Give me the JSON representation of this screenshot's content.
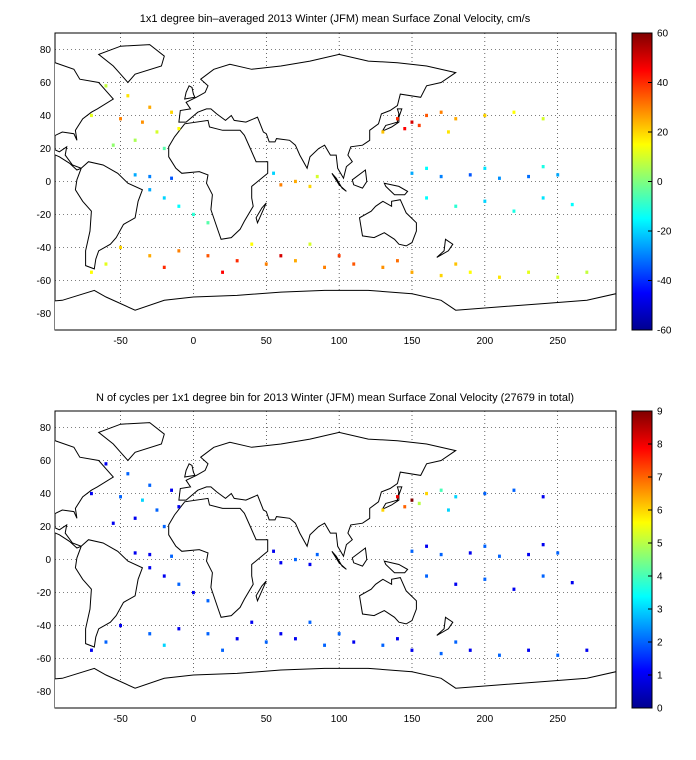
{
  "chart_data": [
    {
      "type": "heatmap",
      "title": "1x1 degree bin–averaged 2013 Winter (JFM) mean Surface Zonal Velocity, cm/s",
      "xlabel": "",
      "ylabel": "",
      "xlim": [
        -95,
        290
      ],
      "ylim": [
        -90,
        90
      ],
      "xticks": [
        -50,
        0,
        50,
        100,
        150,
        200,
        250
      ],
      "yticks": [
        -80,
        -60,
        -40,
        -20,
        0,
        20,
        40,
        60,
        80
      ],
      "grid": true,
      "colorbar": {
        "min": -60,
        "max": 60,
        "ticks": [
          -60,
          -40,
          -20,
          0,
          20,
          40,
          60
        ],
        "colormap": "jet",
        "placement": "right"
      },
      "value_range": [
        -60,
        60
      ],
      "points": [
        [
          -60,
          58,
          8
        ],
        [
          -45,
          52,
          18
        ],
        [
          -30,
          45,
          25
        ],
        [
          -15,
          42,
          20
        ],
        [
          -50,
          38,
          30
        ],
        [
          -35,
          36,
          28
        ],
        [
          -70,
          40,
          12
        ],
        [
          -25,
          30,
          10
        ],
        [
          -10,
          32,
          15
        ],
        [
          -40,
          25,
          5
        ],
        [
          -20,
          20,
          -5
        ],
        [
          -55,
          22,
          2
        ],
        [
          140,
          38,
          40
        ],
        [
          150,
          36,
          50
        ],
        [
          160,
          40,
          35
        ],
        [
          170,
          42,
          30
        ],
        [
          180,
          38,
          25
        ],
        [
          200,
          40,
          20
        ],
        [
          220,
          42,
          15
        ],
        [
          240,
          38,
          10
        ],
        [
          145,
          32,
          45
        ],
        [
          155,
          34,
          38
        ],
        [
          175,
          30,
          18
        ],
        [
          130,
          30,
          22
        ],
        [
          150,
          5,
          -25
        ],
        [
          170,
          3,
          -30
        ],
        [
          190,
          4,
          -35
        ],
        [
          210,
          2,
          -28
        ],
        [
          230,
          3,
          -32
        ],
        [
          250,
          4,
          -25
        ],
        [
          160,
          8,
          -15
        ],
        [
          200,
          8,
          -18
        ],
        [
          240,
          9,
          -12
        ],
        [
          -30,
          3,
          -30
        ],
        [
          -15,
          2,
          -35
        ],
        [
          -40,
          4,
          -25
        ],
        [
          60,
          -2,
          30
        ],
        [
          70,
          0,
          25
        ],
        [
          80,
          -3,
          20
        ],
        [
          55,
          5,
          -20
        ],
        [
          85,
          3,
          10
        ],
        [
          -20,
          -10,
          -20
        ],
        [
          -10,
          -15,
          -15
        ],
        [
          0,
          -20,
          -10
        ],
        [
          10,
          -25,
          -5
        ],
        [
          -30,
          -5,
          -25
        ],
        [
          160,
          -10,
          -15
        ],
        [
          180,
          -15,
          -10
        ],
        [
          200,
          -12,
          -20
        ],
        [
          220,
          -18,
          -12
        ],
        [
          240,
          -10,
          -18
        ],
        [
          260,
          -14,
          -15
        ],
        [
          -50,
          -40,
          20
        ],
        [
          -30,
          -45,
          25
        ],
        [
          -10,
          -42,
          30
        ],
        [
          10,
          -45,
          35
        ],
        [
          30,
          -48,
          40
        ],
        [
          50,
          -50,
          30
        ],
        [
          70,
          -48,
          25
        ],
        [
          90,
          -52,
          30
        ],
        [
          110,
          -50,
          35
        ],
        [
          130,
          -52,
          28
        ],
        [
          150,
          -55,
          25
        ],
        [
          170,
          -57,
          20
        ],
        [
          190,
          -55,
          15
        ],
        [
          210,
          -58,
          18
        ],
        [
          230,
          -55,
          12
        ],
        [
          250,
          -58,
          10
        ],
        [
          270,
          -55,
          8
        ],
        [
          -20,
          -52,
          40
        ],
        [
          20,
          -55,
          45
        ],
        [
          60,
          -45,
          50
        ],
        [
          100,
          -45,
          38
        ],
        [
          140,
          -48,
          32
        ],
        [
          180,
          -50,
          22
        ],
        [
          -70,
          -55,
          15
        ],
        [
          -60,
          -50,
          12
        ],
        [
          40,
          -38,
          15
        ],
        [
          80,
          -38,
          10
        ]
      ]
    },
    {
      "type": "heatmap",
      "title": "N of cycles per 1x1 degree bin for 2013 Winter (JFM) mean Surface Zonal Velocity (27679 in total)",
      "xlabel": "",
      "ylabel": "",
      "xlim": [
        -95,
        290
      ],
      "ylim": [
        -90,
        90
      ],
      "xticks": [
        -50,
        0,
        50,
        100,
        150,
        200,
        250
      ],
      "yticks": [
        -80,
        -60,
        -40,
        -20,
        0,
        20,
        40,
        60,
        80
      ],
      "grid": true,
      "colorbar": {
        "min": 0,
        "max": 9,
        "ticks": [
          0,
          1,
          2,
          3,
          4,
          5,
          6,
          7,
          8,
          9
        ],
        "colormap": "jet",
        "placement": "right"
      },
      "value_range": [
        0,
        9
      ],
      "points": [
        [
          -60,
          58,
          1
        ],
        [
          -45,
          52,
          2
        ],
        [
          -30,
          45,
          2
        ],
        [
          -15,
          42,
          1
        ],
        [
          -50,
          38,
          2
        ],
        [
          -35,
          36,
          3
        ],
        [
          -70,
          40,
          1
        ],
        [
          -25,
          30,
          2
        ],
        [
          -10,
          32,
          1
        ],
        [
          -40,
          25,
          1
        ],
        [
          -20,
          20,
          2
        ],
        [
          -55,
          22,
          1
        ],
        [
          140,
          38,
          8
        ],
        [
          150,
          36,
          9
        ],
        [
          160,
          40,
          6
        ],
        [
          170,
          42,
          4
        ],
        [
          180,
          38,
          3
        ],
        [
          200,
          40,
          2
        ],
        [
          220,
          42,
          2
        ],
        [
          240,
          38,
          1
        ],
        [
          145,
          32,
          7
        ],
        [
          155,
          34,
          5
        ],
        [
          175,
          30,
          3
        ],
        [
          130,
          30,
          6
        ],
        [
          150,
          5,
          2
        ],
        [
          170,
          3,
          2
        ],
        [
          190,
          4,
          1
        ],
        [
          210,
          2,
          2
        ],
        [
          230,
          3,
          1
        ],
        [
          250,
          4,
          2
        ],
        [
          160,
          8,
          1
        ],
        [
          200,
          8,
          2
        ],
        [
          240,
          9,
          1
        ],
        [
          -30,
          3,
          1
        ],
        [
          -15,
          2,
          2
        ],
        [
          -40,
          4,
          1
        ],
        [
          60,
          -2,
          1
        ],
        [
          70,
          0,
          2
        ],
        [
          80,
          -3,
          1
        ],
        [
          55,
          5,
          1
        ],
        [
          85,
          3,
          2
        ],
        [
          -20,
          -10,
          1
        ],
        [
          -10,
          -15,
          2
        ],
        [
          0,
          -20,
          1
        ],
        [
          10,
          -25,
          2
        ],
        [
          -30,
          -5,
          1
        ],
        [
          160,
          -10,
          2
        ],
        [
          180,
          -15,
          1
        ],
        [
          200,
          -12,
          2
        ],
        [
          220,
          -18,
          1
        ],
        [
          240,
          -10,
          2
        ],
        [
          260,
          -14,
          1
        ],
        [
          -50,
          -40,
          1
        ],
        [
          -30,
          -45,
          2
        ],
        [
          -10,
          -42,
          1
        ],
        [
          10,
          -45,
          2
        ],
        [
          30,
          -48,
          1
        ],
        [
          50,
          -50,
          2
        ],
        [
          70,
          -48,
          1
        ],
        [
          90,
          -52,
          2
        ],
        [
          110,
          -50,
          1
        ],
        [
          130,
          -52,
          2
        ],
        [
          150,
          -55,
          1
        ],
        [
          170,
          -57,
          2
        ],
        [
          190,
          -55,
          1
        ],
        [
          210,
          -58,
          2
        ],
        [
          230,
          -55,
          1
        ],
        [
          250,
          -58,
          2
        ],
        [
          270,
          -55,
          1
        ],
        [
          -20,
          -52,
          3
        ],
        [
          20,
          -55,
          2
        ],
        [
          60,
          -45,
          1
        ],
        [
          100,
          -45,
          2
        ],
        [
          140,
          -48,
          1
        ],
        [
          180,
          -50,
          2
        ],
        [
          -70,
          -55,
          1
        ],
        [
          -60,
          -50,
          2
        ],
        [
          40,
          -38,
          1
        ],
        [
          80,
          -38,
          2
        ]
      ]
    }
  ]
}
